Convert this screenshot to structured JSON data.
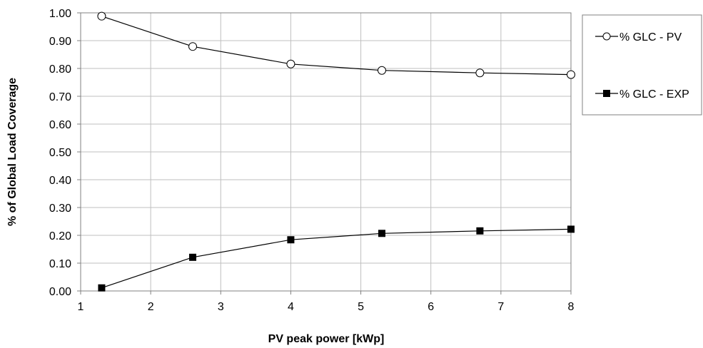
{
  "chart_data": {
    "type": "line",
    "title": "",
    "xlabel": "PV peak power [kWp]",
    "ylabel": "% of Global Load Coverage",
    "xlim": [
      1,
      8
    ],
    "ylim": [
      0,
      1
    ],
    "xticks": [
      1,
      2,
      3,
      4,
      5,
      6,
      7,
      8
    ],
    "yticks": [
      0.0,
      0.1,
      0.2,
      0.3,
      0.4,
      0.5,
      0.6,
      0.7,
      0.8,
      0.9,
      1.0
    ],
    "x_tick_labels": [
      "1",
      "2",
      "3",
      "4",
      "5",
      "6",
      "7",
      "8"
    ],
    "y_tick_labels": [
      "0.00",
      "0.10",
      "0.20",
      "0.30",
      "0.40",
      "0.50",
      "0.60",
      "0.70",
      "0.80",
      "0.90",
      "1.00"
    ],
    "grid": true,
    "legend_position": "right",
    "series": [
      {
        "name": "% GLC - PV",
        "marker": "open-circle",
        "color": "#000000",
        "x": [
          1.3,
          2.6,
          4.0,
          5.3,
          6.7,
          8.0
        ],
        "y": [
          0.988,
          0.879,
          0.816,
          0.793,
          0.784,
          0.778
        ]
      },
      {
        "name": "% GLC - EXP",
        "marker": "filled-square",
        "color": "#000000",
        "x": [
          1.3,
          2.6,
          4.0,
          5.3,
          6.7,
          8.0
        ],
        "y": [
          0.011,
          0.121,
          0.184,
          0.207,
          0.216,
          0.222
        ]
      }
    ]
  },
  "colors": {
    "gridline": "#bfbfbf",
    "axis": "#808080",
    "series_line": "#000000"
  }
}
